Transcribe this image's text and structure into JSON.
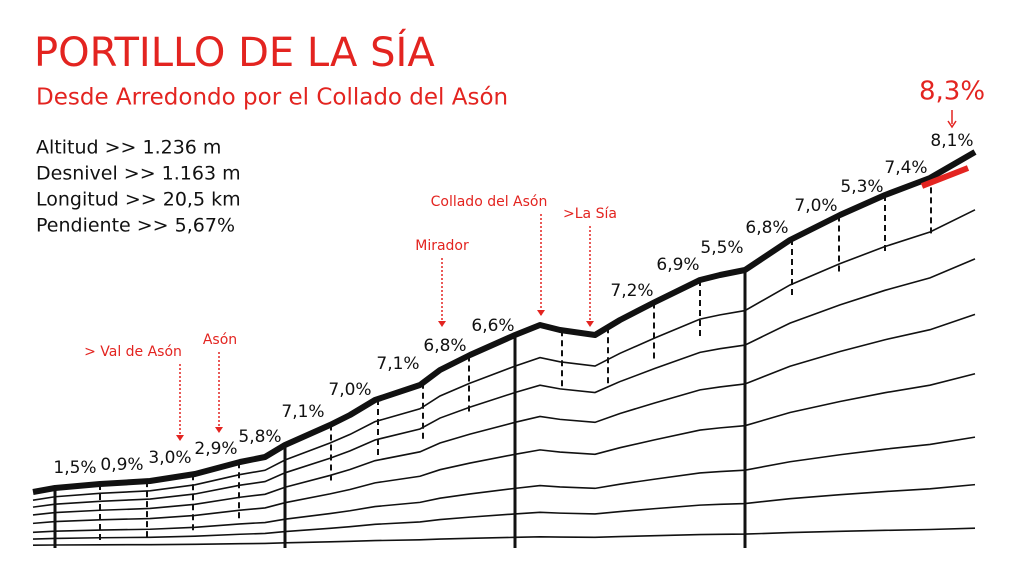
{
  "header": {
    "title": "PORTILLO DE LA SÍA",
    "subtitle": "Desde Arredondo por el Collado del Asón"
  },
  "stats": [
    "Altitud >> 1.236 m",
    "Desnivel >> 1.163 m",
    "Longitud >> 20,5 km",
    "Pendiente >> 5,67%"
  ],
  "gradients": [
    "1,5%",
    "0,9%",
    "3,0%",
    "2,9%",
    "5,8%",
    "7,1%",
    "7,0%",
    "7,1%",
    "6,8%",
    "6,6%",
    "7,2%",
    "6,9%",
    "5,5%",
    "6,8%",
    "7,0%",
    "5,3%",
    "7,4%",
    "8,1%"
  ],
  "max_gradient": "8,3%",
  "places": [
    "> Val de Asón",
    "Asón",
    "Mirador",
    "Collado del Asón",
    ">La Sía"
  ]
}
